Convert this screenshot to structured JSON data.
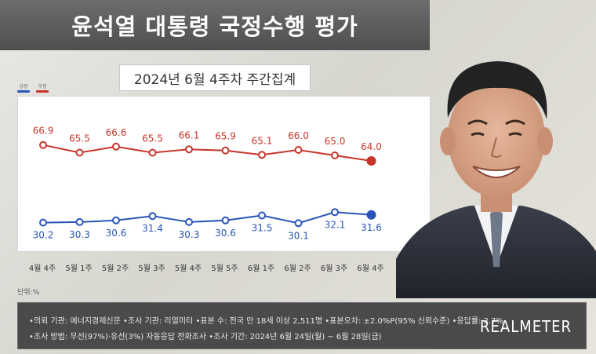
{
  "header": {
    "title": "윤석열 대통령 국정수행 평가",
    "subtitle": "2024년 6월 4주차 주간집계"
  },
  "legend": {
    "positive_label": "긍정",
    "negative_label": "부정"
  },
  "unit_label": "단위:%",
  "colors": {
    "positive": "#2855b8",
    "negative": "#c8352b"
  },
  "chart_data": {
    "type": "line",
    "title": "윤석열 대통령 국정수행 평가",
    "subtitle": "2024년 6월 4주차 주간집계",
    "categories": [
      "4월 4주",
      "5월 1주",
      "5월 2주",
      "5월 3주",
      "5월 4주",
      "5월 5주",
      "6월 1주",
      "6월 2주",
      "6월 3주",
      "6월 4주"
    ],
    "series": [
      {
        "name": "부정",
        "values": [
          66.9,
          65.5,
          66.6,
          65.5,
          66.1,
          65.9,
          65.1,
          66.0,
          65.0,
          64.0
        ]
      },
      {
        "name": "긍정",
        "values": [
          30.2,
          30.3,
          30.6,
          31.4,
          30.3,
          30.6,
          31.5,
          30.1,
          32.1,
          31.6
        ]
      }
    ],
    "xlabel": "",
    "ylabel": "",
    "grid": false,
    "legend_position": "top-left"
  },
  "footer": {
    "line1": "•의뢰 기관: 에너지경제신문  •조사 기관: 리얼미터  •표본 수: 전국 만 18세 이상 2,511명  •표본오차: ±2.0%P(95% 신뢰수준)  •응답률: 2.7%",
    "line2": "•조사 방법: 무선(97%)·유선(3%) 자동응답 전화조사  •조사 기간: 2024년 6월 24일(월) ~ 6월 28일(금)",
    "logo": "REALMETER"
  }
}
